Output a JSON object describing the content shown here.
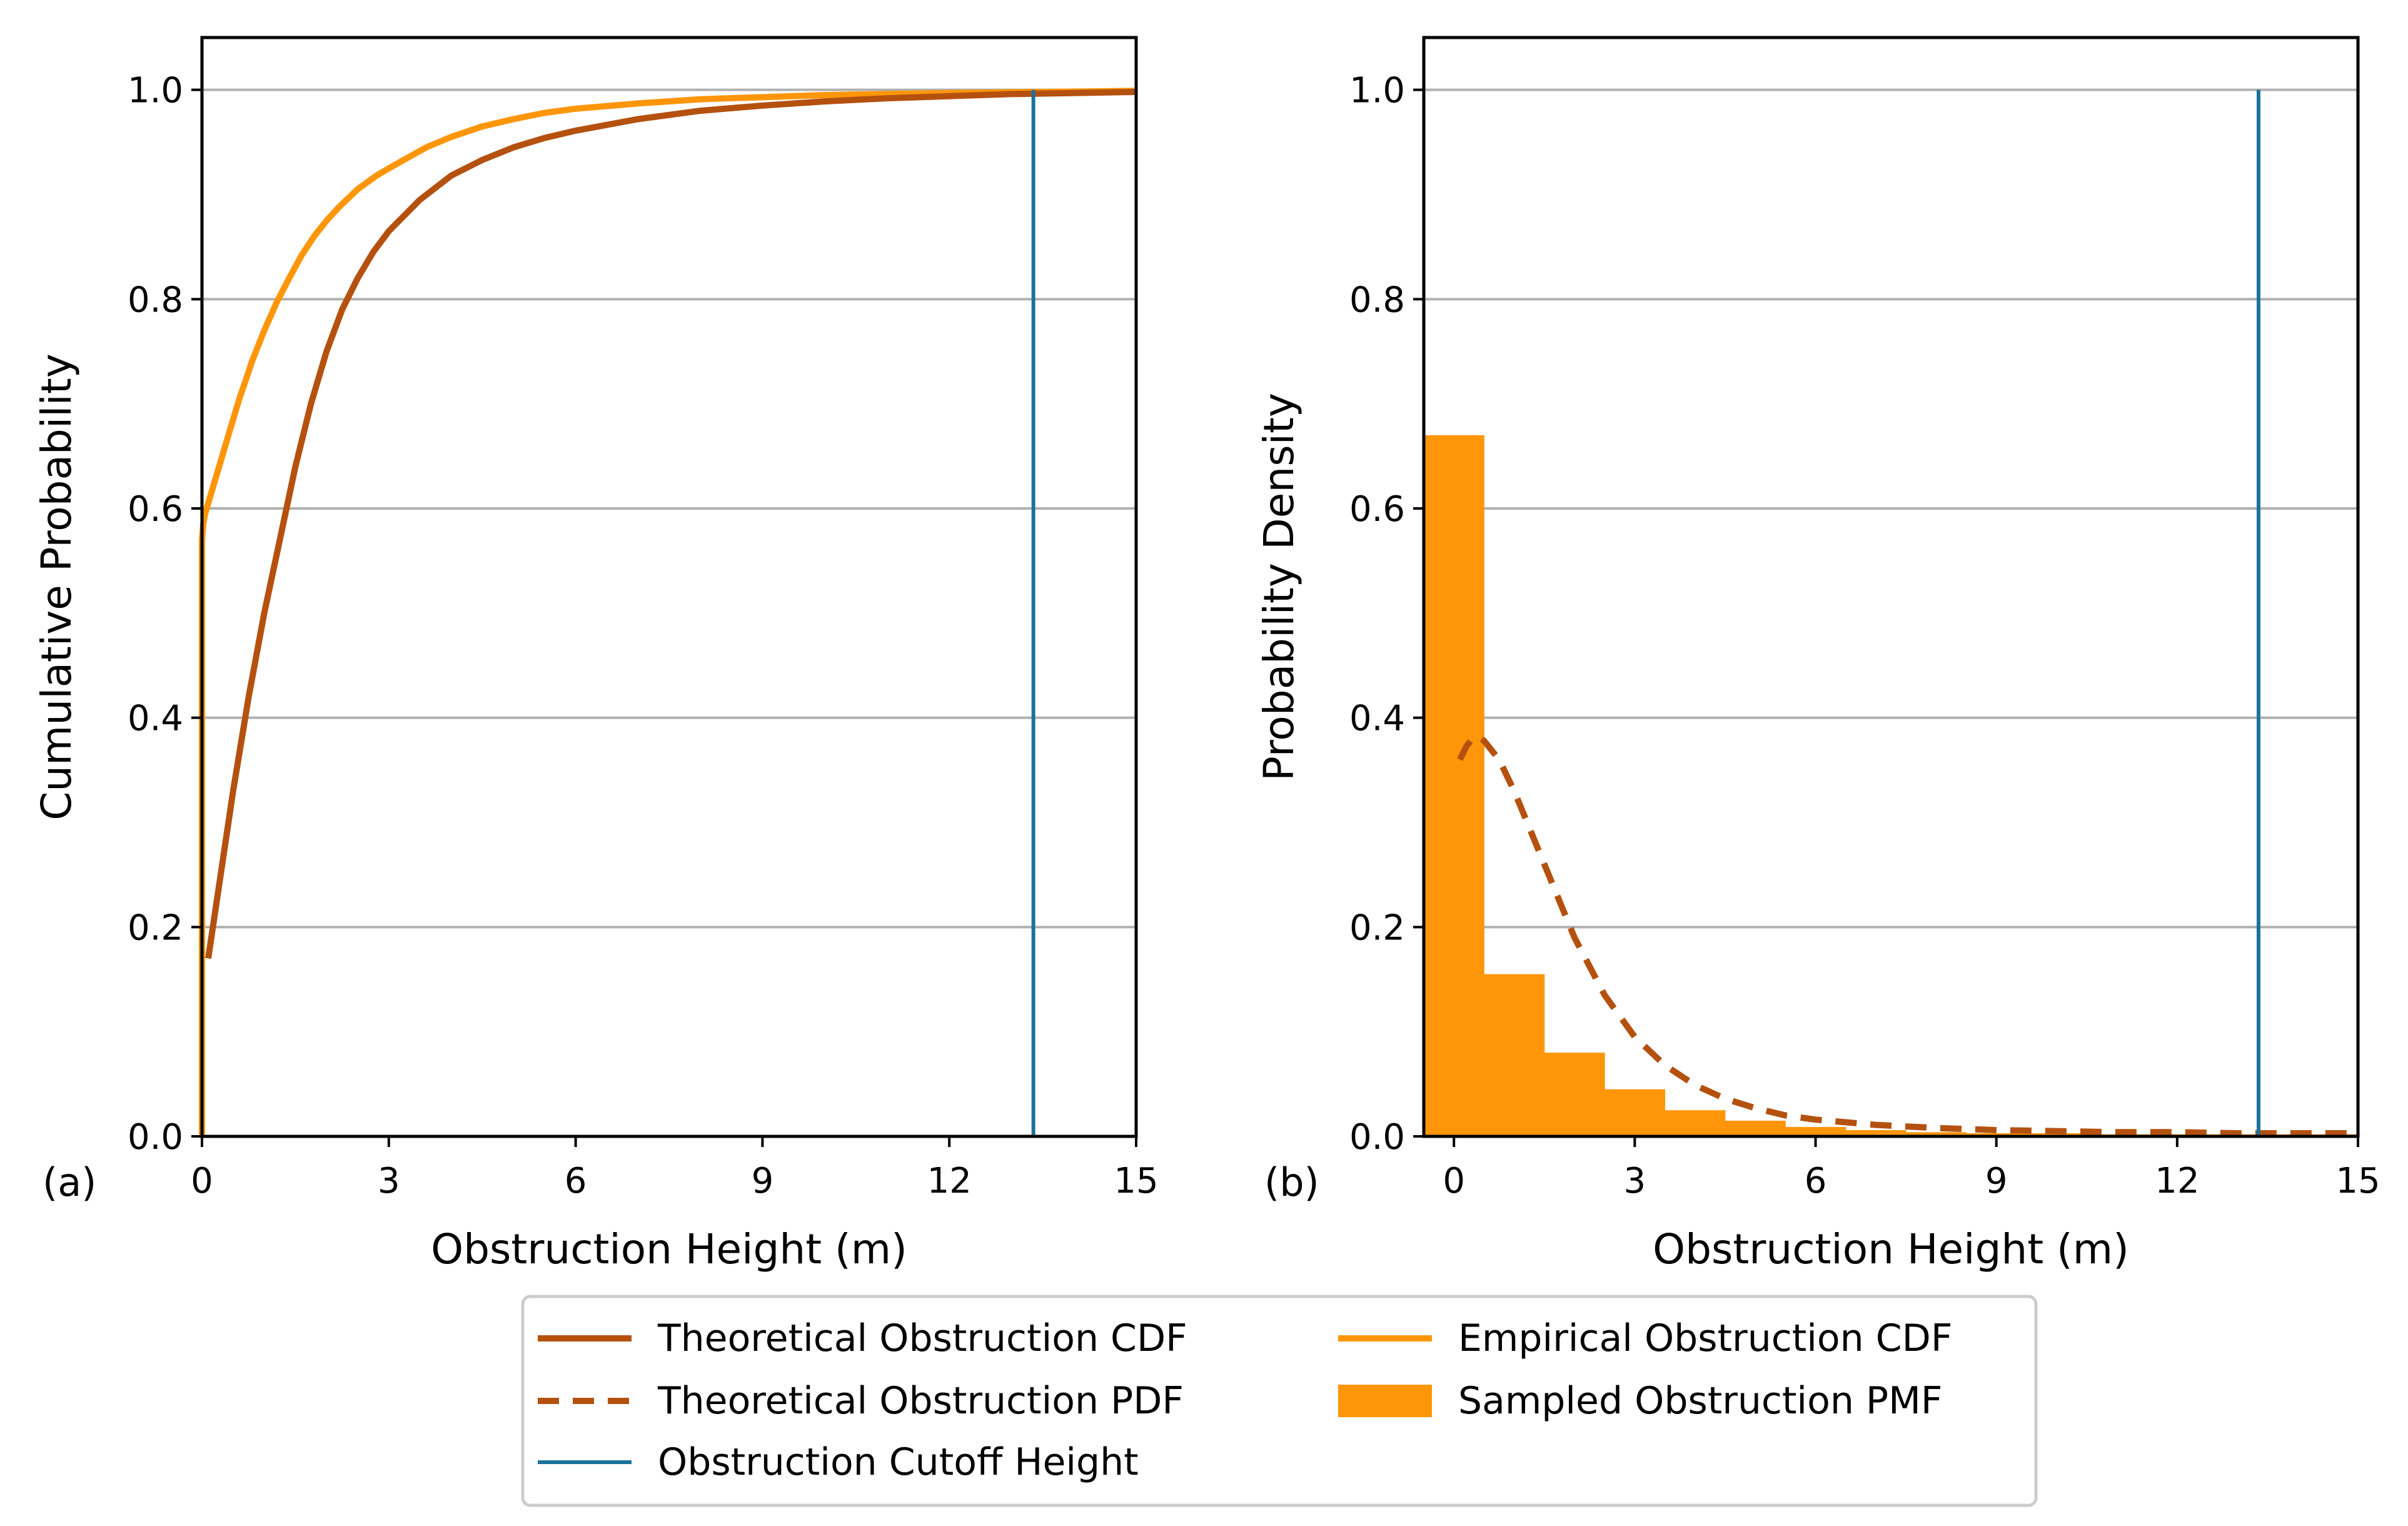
{
  "colors": {
    "theoretical": "#b5510f",
    "empirical": "#ff960a",
    "cutoff": "#1a729a",
    "grid": "#b0b0b0",
    "axis": "#000000"
  },
  "chart_data": [
    {
      "type": "line",
      "panel_label": "(a)",
      "xlabel": "Obstruction Height (m)",
      "ylabel": "Cumulative Probability",
      "xlim": [
        0,
        15
      ],
      "ylim": [
        0,
        1.05
      ],
      "xticks": [
        "0",
        "3",
        "6",
        "9",
        "12",
        "15"
      ],
      "xtick_values": [
        0,
        3,
        6,
        9,
        12,
        15
      ],
      "yticks": [
        "0.0",
        "0.2",
        "0.4",
        "0.6",
        "0.8",
        "1.0"
      ],
      "ytick_values": [
        0,
        0.2,
        0.4,
        0.6,
        0.8,
        1.0
      ],
      "grid": "y",
      "series": [
        {
          "name": "Empirical Obstruction CDF",
          "kind": "line",
          "x": [
            0,
            0,
            0.02,
            0.05,
            0.1,
            0.2,
            0.3,
            0.4,
            0.5,
            0.6,
            0.7,
            0.8,
            0.9,
            1.0,
            1.2,
            1.4,
            1.6,
            1.8,
            2.0,
            2.2,
            2.5,
            2.8,
            3.0,
            3.3,
            3.6,
            4.0,
            4.5,
            5.0,
            5.5,
            6.0,
            7.0,
            8.0,
            9.0,
            10.0,
            12.0,
            15.0
          ],
          "y": [
            0,
            0.57,
            0.585,
            0.595,
            0.605,
            0.625,
            0.645,
            0.665,
            0.685,
            0.705,
            0.722,
            0.74,
            0.755,
            0.77,
            0.797,
            0.82,
            0.842,
            0.86,
            0.875,
            0.888,
            0.905,
            0.918,
            0.925,
            0.935,
            0.945,
            0.955,
            0.965,
            0.972,
            0.978,
            0.982,
            0.987,
            0.991,
            0.993,
            0.995,
            0.997,
            0.999
          ]
        },
        {
          "name": "Theoretical Obstruction CDF",
          "kind": "line",
          "x": [
            0.1,
            0.3,
            0.5,
            0.75,
            1.0,
            1.25,
            1.5,
            1.75,
            2.0,
            2.25,
            2.5,
            2.75,
            3.0,
            3.5,
            4.0,
            4.5,
            5.0,
            5.5,
            6.0,
            7.0,
            8.0,
            9.0,
            10.0,
            11.0,
            12.0,
            13.0,
            14.0,
            15.0
          ],
          "y": [
            0.17,
            0.25,
            0.33,
            0.42,
            0.5,
            0.57,
            0.64,
            0.7,
            0.75,
            0.79,
            0.82,
            0.845,
            0.865,
            0.895,
            0.918,
            0.933,
            0.945,
            0.954,
            0.961,
            0.972,
            0.98,
            0.985,
            0.989,
            0.992,
            0.994,
            0.996,
            0.997,
            0.998
          ]
        },
        {
          "name": "Obstruction Cutoff Height",
          "kind": "vline",
          "x": 13.35,
          "y": [
            0,
            1.0
          ]
        }
      ]
    },
    {
      "type": "bar",
      "panel_label": "(b)",
      "xlabel": "Obstruction Height (m)",
      "ylabel": "Probability Density",
      "xlim": [
        -0.5,
        15
      ],
      "ylim": [
        0,
        1.05
      ],
      "xticks": [
        "0",
        "3",
        "6",
        "9",
        "12",
        "15"
      ],
      "xtick_values": [
        0,
        3,
        6,
        9,
        12,
        15
      ],
      "yticks": [
        "0.0",
        "0.2",
        "0.4",
        "0.6",
        "0.8",
        "1.0"
      ],
      "ytick_values": [
        0,
        0.2,
        0.4,
        0.6,
        0.8,
        1.0
      ],
      "grid": "y",
      "series": [
        {
          "name": "Sampled Obstruction PMF",
          "kind": "bar",
          "bin_edges": [
            -0.5,
            0.5,
            1.5,
            2.5,
            3.5,
            4.5,
            5.5,
            6.5,
            7.5,
            8.5,
            9.5,
            10.5,
            11.5,
            12.5,
            13.5,
            14.5,
            15.0
          ],
          "values": [
            0.67,
            0.155,
            0.08,
            0.045,
            0.025,
            0.015,
            0.009,
            0.006,
            0.004,
            0.003,
            0.003,
            0.002,
            0.002,
            0.002,
            0.002,
            0.002
          ]
        },
        {
          "name": "Theoretical Obstruction PDF",
          "kind": "dashed-line",
          "x": [
            0.1,
            0.2,
            0.3,
            0.4,
            0.5,
            0.75,
            1.0,
            1.25,
            1.5,
            1.75,
            2.0,
            2.5,
            3.0,
            3.5,
            4.0,
            4.5,
            5.0,
            5.5,
            6.0,
            7.0,
            8.0,
            9.0,
            10.0,
            11.0,
            12.0,
            13.0,
            14.0,
            15.0
          ],
          "y": [
            0.36,
            0.372,
            0.38,
            0.382,
            0.378,
            0.36,
            0.33,
            0.295,
            0.26,
            0.225,
            0.19,
            0.135,
            0.095,
            0.068,
            0.049,
            0.036,
            0.027,
            0.02,
            0.016,
            0.011,
            0.008,
            0.006,
            0.005,
            0.004,
            0.004,
            0.003,
            0.003,
            0.003
          ]
        },
        {
          "name": "Obstruction Cutoff Height",
          "kind": "vline",
          "x": 13.35,
          "y": [
            0,
            1.0
          ]
        }
      ]
    }
  ],
  "legend": {
    "placement": "bottom-center",
    "entries": [
      {
        "label": "Theoretical Obstruction CDF",
        "style": "solid",
        "color_key": "theoretical"
      },
      {
        "label": "Theoretical Obstruction PDF",
        "style": "dashed",
        "color_key": "theoretical"
      },
      {
        "label": "Obstruction Cutoff Height",
        "style": "thin",
        "color_key": "cutoff"
      },
      {
        "label": "Empirical Obstruction CDF",
        "style": "solid",
        "color_key": "empirical"
      },
      {
        "label": "Sampled Obstruction PMF",
        "style": "patch",
        "color_key": "empirical"
      }
    ]
  }
}
